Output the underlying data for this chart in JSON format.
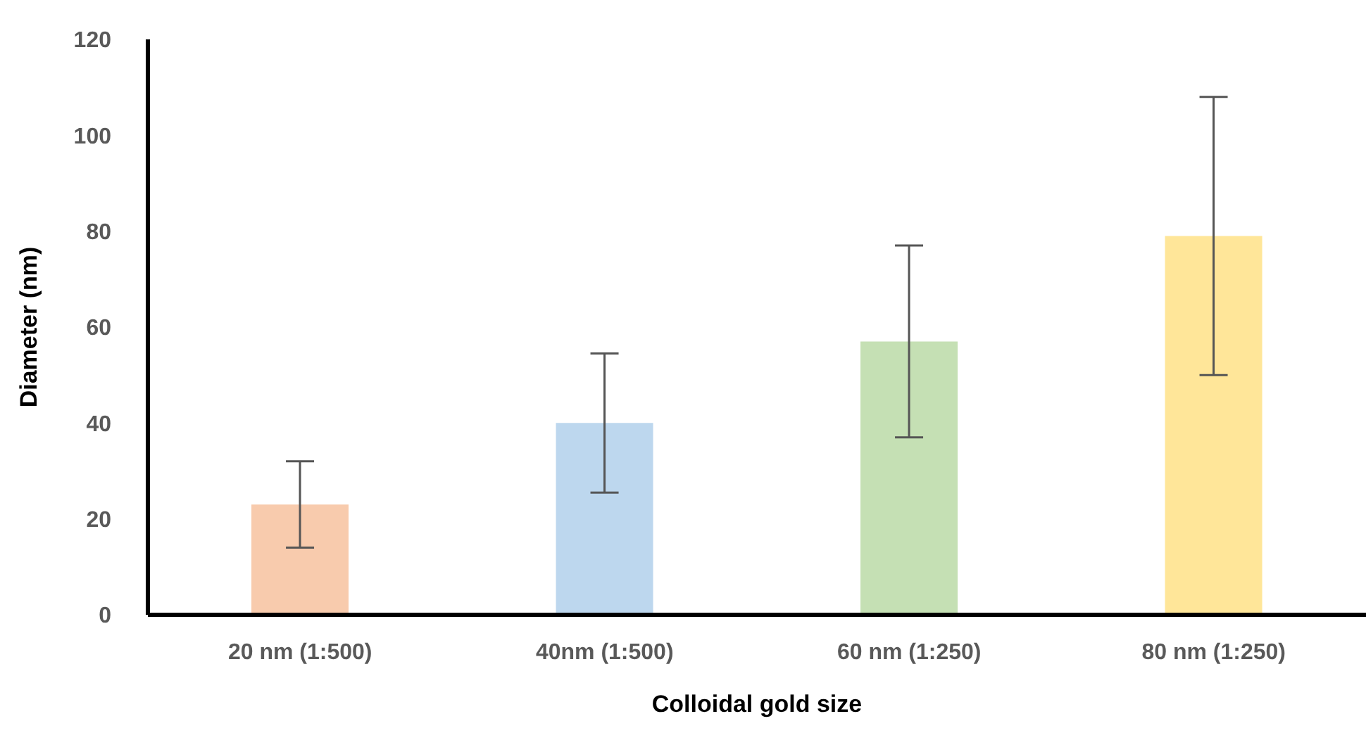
{
  "chart_data": {
    "type": "bar",
    "xlabel": "Colloidal gold size",
    "ylabel": "Diameter (nm)",
    "categories": [
      "20 nm (1:500)",
      "40nm (1:500)",
      "60 nm (1:250)",
      "80 nm (1:250)"
    ],
    "values": [
      23,
      40,
      57,
      79
    ],
    "errors": [
      9,
      14.5,
      20,
      29
    ],
    "colors": [
      "#f8cbad",
      "#bdd7ee",
      "#c5e0b4",
      "#ffe699"
    ],
    "ylim": [
      0,
      120
    ],
    "yticks": [
      0,
      20,
      40,
      60,
      80,
      100,
      120
    ],
    "grid": false,
    "legend": false
  }
}
